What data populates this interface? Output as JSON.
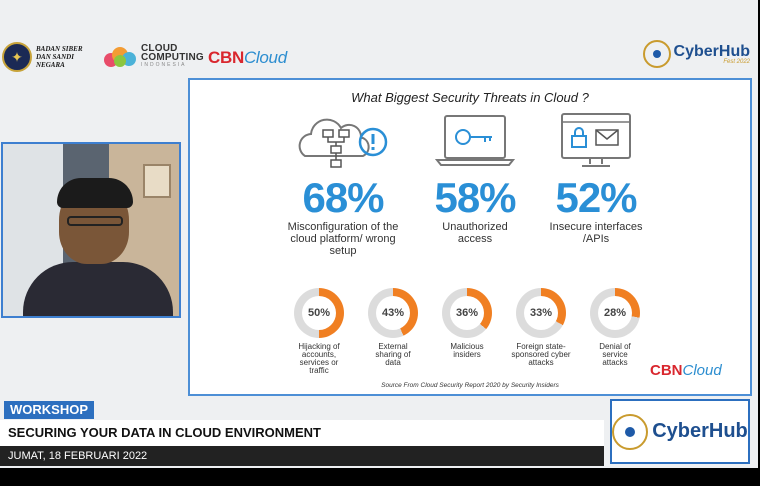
{
  "header": {
    "bssn_text": "BADAN SIBER DAN SANDI NEGARA",
    "cloud_computing_title": "CLOUD COMPUTING",
    "cloud_computing_sub": "INDONESIA",
    "cbn_red": "CBN",
    "cbn_blue": "Cloud",
    "cyberhub": "CyberHub",
    "cyberhub_sub": "Fest 2022"
  },
  "slide": {
    "title": "What Biggest Security Threats in Cloud ?",
    "big_stats": [
      {
        "value": "68%",
        "label": "Misconfiguration of the cloud platform/ wrong setup",
        "icon": "cloud-network-alert-icon"
      },
      {
        "value": "58%",
        "label": "Unauthorized access",
        "icon": "laptop-key-icon"
      },
      {
        "value": "52%",
        "label": "Insecure interfaces /APIs",
        "icon": "monitor-lock-mail-icon"
      }
    ],
    "small_stats": [
      {
        "value": "50%",
        "fraction": 0.5,
        "label": "Hijacking of accounts, services or traffic"
      },
      {
        "value": "43%",
        "fraction": 0.43,
        "label": "External sharing of data"
      },
      {
        "value": "36%",
        "fraction": 0.36,
        "label": "Malicious insiders"
      },
      {
        "value": "33%",
        "fraction": 0.33,
        "label": "Foreign state-sponsored cyber attacks"
      },
      {
        "value": "28%",
        "fraction": 0.28,
        "label": "Denial of service attacks"
      }
    ],
    "source": "Source From Cloud Security Report 2020 by Security Insiders",
    "cbn_red": "CBN",
    "cbn_blue": "Cloud"
  },
  "lower_third": {
    "badge": "WORKSHOP",
    "title": "SECURING YOUR DATA IN CLOUD ENVIRONMENT",
    "date": "JUMAT, 18 FEBRUARI 2022",
    "cyberhub": "CyberHub"
  },
  "colors": {
    "accent_blue": "#2a8fd6",
    "ring_orange": "#f07f22",
    "ring_gray": "#dcdcdc",
    "frame_blue": "#4d8fd6"
  }
}
